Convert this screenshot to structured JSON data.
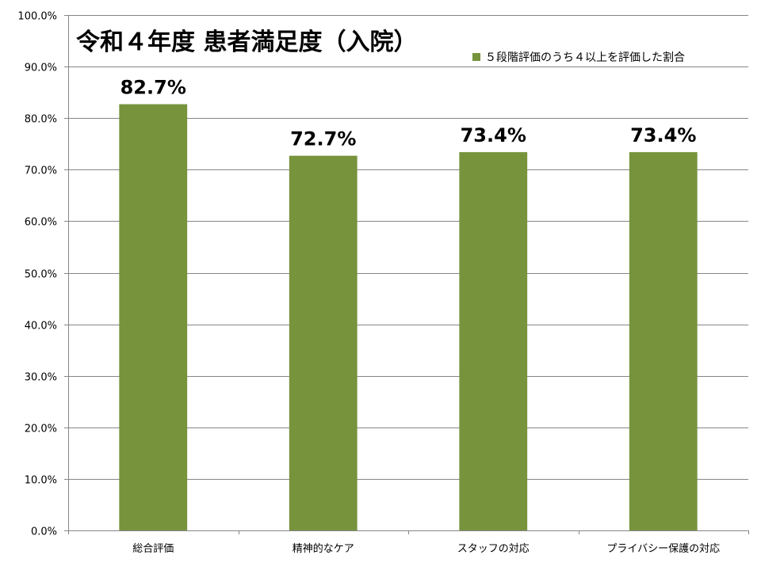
{
  "chart_data": {
    "type": "bar",
    "title": "令和４年度 患者満足度（入院）",
    "categories": [
      "総合評価",
      "精神的なケア",
      "スタッフの対応",
      "プライバシー保護の対応"
    ],
    "series": [
      {
        "name": "５段階評価のうち４以上を評価した割合",
        "values": [
          82.7,
          72.7,
          73.4,
          73.4
        ],
        "color": "#77933c"
      }
    ],
    "data_labels": [
      "82.7%",
      "72.7%",
      "73.4%",
      "73.4%"
    ],
    "ylim": [
      0,
      100
    ],
    "yticks": [
      0,
      10,
      20,
      30,
      40,
      50,
      60,
      70,
      80,
      90,
      100
    ],
    "ytick_labels": [
      "0.0%",
      "10.0%",
      "20.0%",
      "30.0%",
      "40.0%",
      "50.0%",
      "60.0%",
      "70.0%",
      "80.0%",
      "90.0%",
      "100.0%"
    ],
    "grid": true,
    "legend_position": "top-right",
    "gridline_color": "#868686"
  }
}
